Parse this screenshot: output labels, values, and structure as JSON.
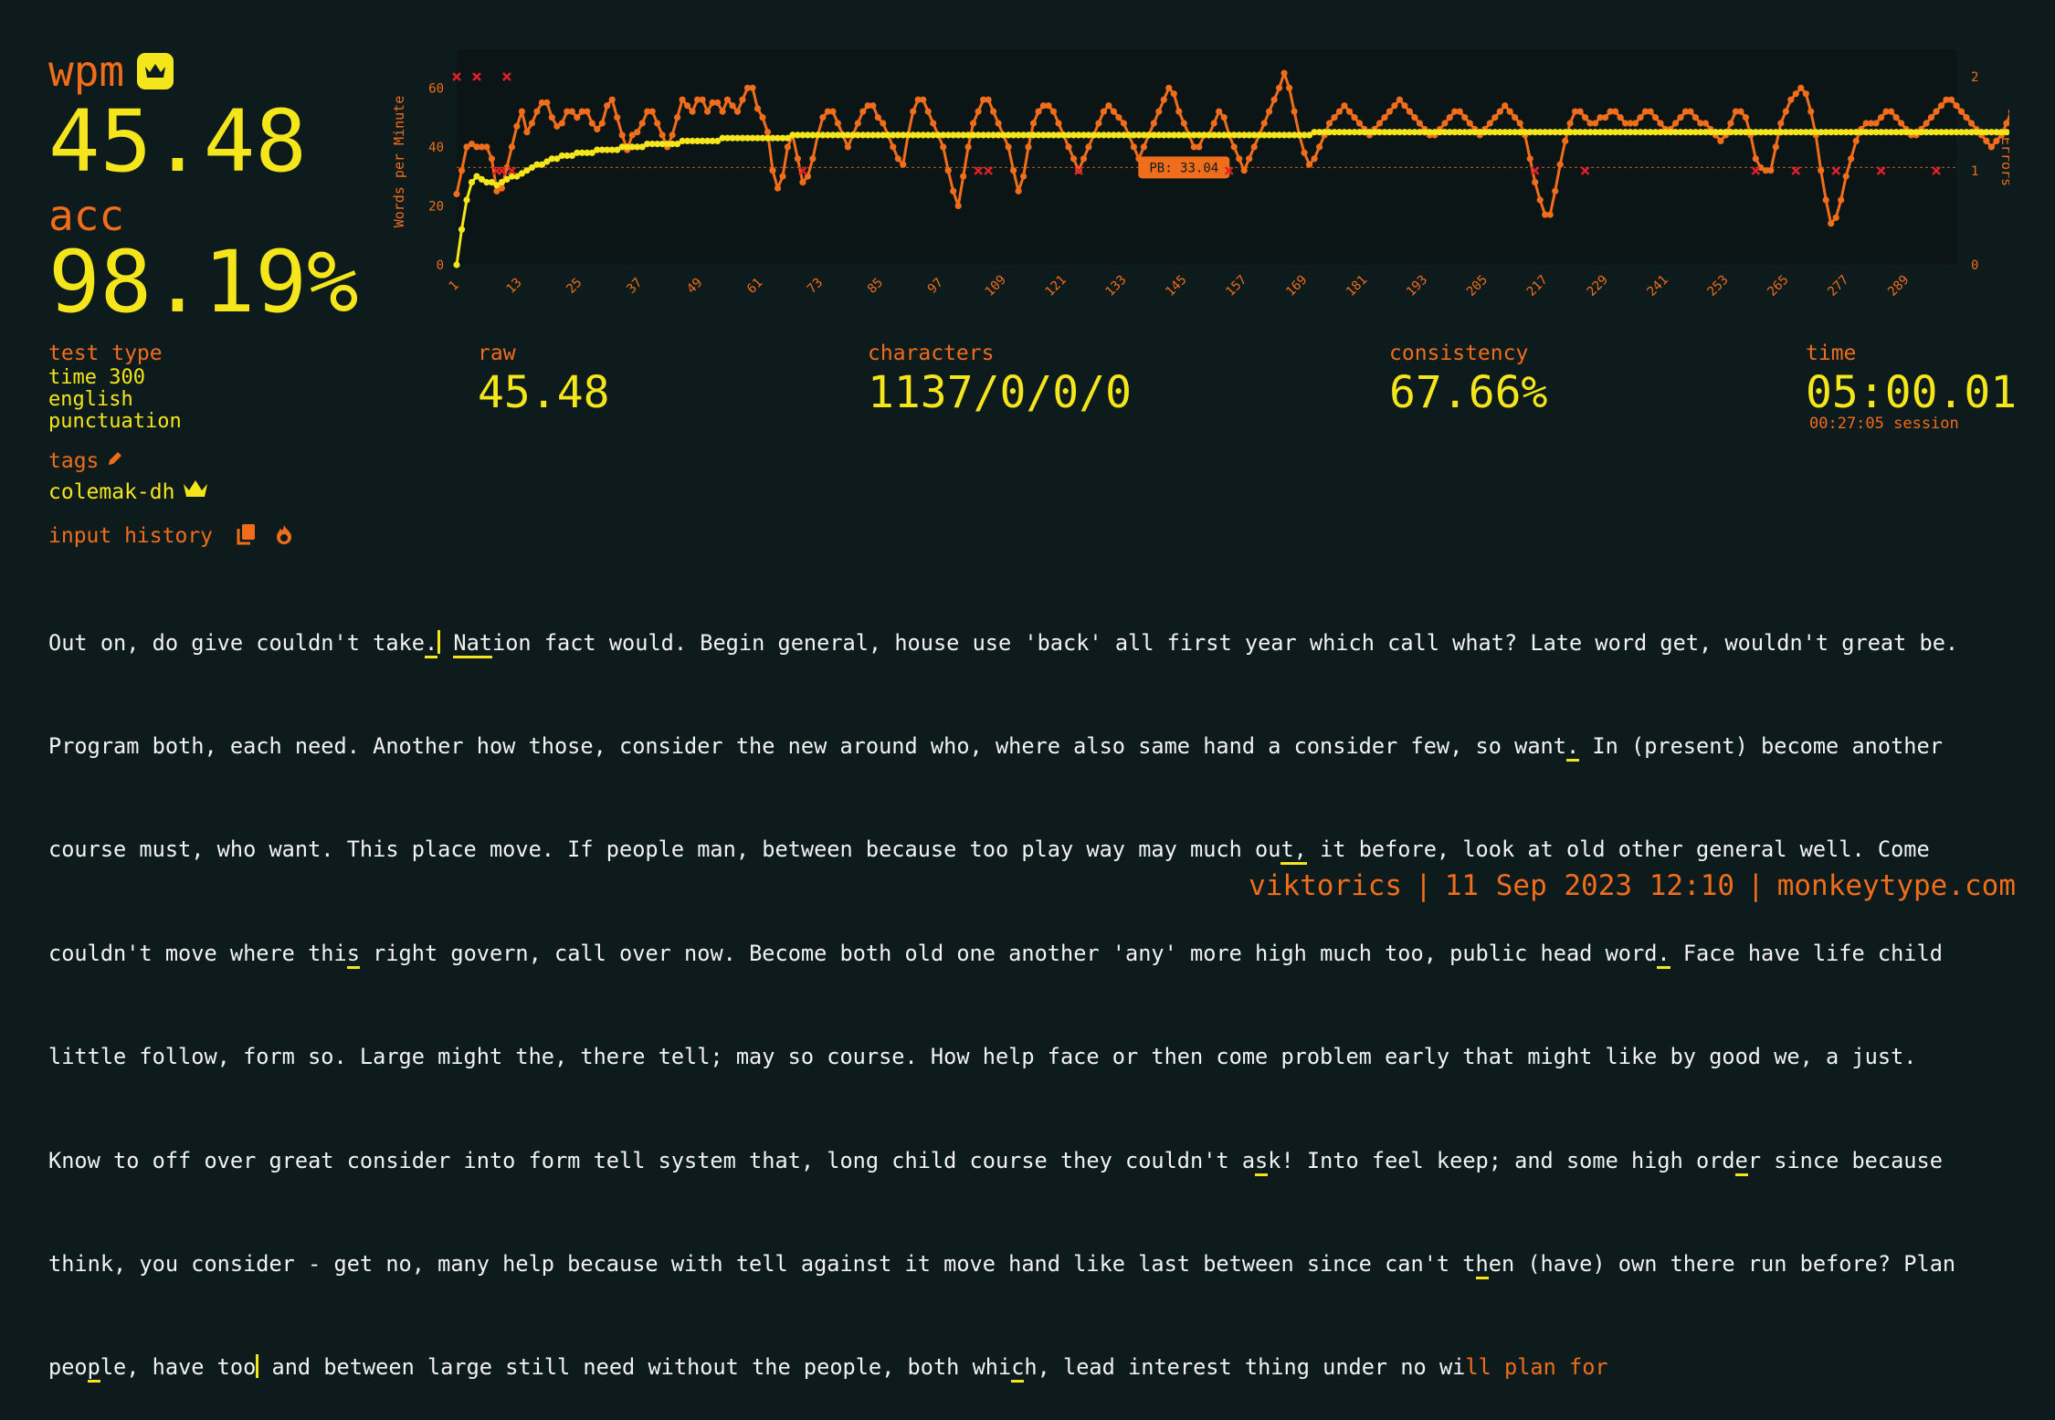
{
  "result": {
    "wpm_label": "wpm",
    "wpm": "45.48",
    "acc_label": "acc",
    "acc": "98.19%"
  },
  "chart_data": {
    "type": "line",
    "ylabel_left": "Words per Minute",
    "ylabel_right": "Errors",
    "y_left_ticks": [
      "0",
      "20",
      "40",
      "60"
    ],
    "y_left_range": [
      0,
      70
    ],
    "y_right_ticks": [
      "0",
      "1",
      "2"
    ],
    "y_right_range": [
      0,
      2
    ],
    "x_range": [
      1,
      300
    ],
    "x_ticks": [
      "1",
      "13",
      "25",
      "37",
      "49",
      "61",
      "73",
      "85",
      "97",
      "109",
      "121",
      "133",
      "145",
      "157",
      "169",
      "181",
      "193",
      "205",
      "217",
      "229",
      "241",
      "253",
      "265",
      "277",
      "289"
    ],
    "pb_value": 33.04,
    "pb_label": "PB: 33.04",
    "series": [
      {
        "name": "raw",
        "color": "#ef6d1b",
        "values": [
          24,
          32,
          40,
          41,
          40,
          40,
          40,
          36,
          25,
          26,
          33,
          40,
          47,
          52,
          45,
          48,
          52,
          55,
          55,
          50,
          47,
          48,
          52,
          52,
          50,
          52,
          52,
          48,
          46,
          48,
          54,
          56,
          50,
          44,
          39,
          44,
          45,
          48,
          52,
          52,
          48,
          44,
          40,
          44,
          50,
          56,
          54,
          52,
          56,
          56,
          52,
          55,
          55,
          52,
          56,
          54,
          52,
          56,
          60,
          60,
          53,
          50,
          45,
          32,
          26,
          30,
          40,
          44,
          36,
          28,
          30,
          36,
          44,
          50,
          52,
          52,
          48,
          44,
          40,
          44,
          48,
          52,
          54,
          54,
          50,
          48,
          44,
          40,
          36,
          34,
          44,
          52,
          56,
          56,
          52,
          48,
          44,
          40,
          32,
          25,
          20,
          30,
          40,
          48,
          52,
          56,
          56,
          52,
          48,
          44,
          40,
          32,
          25,
          30,
          40,
          48,
          52,
          54,
          54,
          52,
          48,
          44,
          40,
          36,
          32,
          36,
          40,
          44,
          48,
          52,
          54,
          52,
          50,
          48,
          44,
          40,
          36,
          40,
          44,
          48,
          52,
          56,
          60,
          58,
          52,
          48,
          44,
          40,
          40,
          44,
          44,
          48,
          52,
          50,
          44,
          40,
          36,
          32,
          36,
          40,
          44,
          48,
          52,
          56,
          60,
          65,
          60,
          52,
          44,
          38,
          34,
          36,
          40,
          44,
          48,
          50,
          52,
          54,
          52,
          50,
          48,
          46,
          44,
          46,
          48,
          50,
          52,
          54,
          56,
          54,
          52,
          50,
          48,
          46,
          44,
          44,
          46,
          48,
          50,
          52,
          52,
          50,
          48,
          46,
          44,
          46,
          48,
          50,
          52,
          54,
          52,
          50,
          48,
          44,
          36,
          28,
          22,
          17,
          17,
          25,
          34,
          42,
          48,
          52,
          52,
          50,
          48,
          48,
          50,
          50,
          52,
          52,
          50,
          48,
          48,
          48,
          50,
          52,
          52,
          50,
          48,
          46,
          46,
          48,
          50,
          52,
          52,
          50,
          48,
          48,
          46,
          44,
          42,
          44,
          48,
          52,
          52,
          50,
          44,
          36,
          33,
          32,
          32,
          40,
          48,
          52,
          56,
          58,
          60,
          58,
          52,
          44,
          32,
          22,
          14,
          16,
          22,
          30,
          36,
          42,
          46,
          48,
          48,
          48,
          50,
          52,
          52,
          50,
          48,
          46,
          44,
          44,
          46,
          48,
          50,
          52,
          54,
          56,
          56,
          54,
          52,
          50,
          48,
          46,
          44,
          42,
          40,
          42,
          44,
          48,
          52,
          54,
          56,
          58,
          58,
          56,
          54
        ]
      },
      {
        "name": "wpm",
        "color": "#f5e51b",
        "values": [
          0,
          12,
          22,
          28,
          30,
          29,
          28,
          28,
          27,
          28,
          29,
          30,
          30,
          31,
          32,
          33,
          34,
          34,
          35,
          36,
          36,
          37,
          37,
          37,
          38,
          38,
          38,
          38,
          39,
          39,
          39,
          39,
          39,
          40,
          40,
          40,
          40,
          40,
          41,
          41,
          41,
          41,
          41,
          41,
          41,
          42,
          42,
          42,
          42,
          42,
          42,
          42,
          42,
          43,
          43,
          43,
          43,
          43,
          43,
          43,
          43,
          43,
          43,
          43,
          43,
          43,
          43,
          44,
          44,
          44,
          44,
          44,
          44,
          44,
          44,
          44,
          44,
          44,
          44,
          44,
          44,
          44,
          44,
          44,
          44,
          44,
          44,
          44,
          44,
          44,
          44,
          44,
          44,
          44,
          44,
          44,
          44,
          44,
          44,
          44,
          44,
          44,
          44,
          44,
          44,
          44,
          44,
          44,
          44,
          44,
          44,
          44,
          44,
          44,
          44,
          44,
          44,
          44,
          44,
          44,
          44,
          44,
          44,
          44,
          44,
          44,
          44,
          44,
          44,
          44,
          44,
          44,
          44,
          44,
          44,
          44,
          44,
          44,
          44,
          44,
          44,
          44,
          44,
          44,
          44,
          44,
          44,
          44,
          44,
          44,
          44,
          44,
          44,
          44,
          44,
          44,
          44,
          44,
          44,
          44,
          44,
          44,
          44,
          44,
          44,
          44,
          44,
          44,
          44,
          44,
          44,
          45,
          45,
          45,
          45,
          45,
          45,
          45,
          45,
          45,
          45,
          45,
          45,
          45,
          45,
          45,
          45,
          45,
          45,
          45,
          45,
          45,
          45,
          45,
          45,
          45,
          45,
          45,
          45,
          45,
          45,
          45,
          45,
          45,
          45,
          45,
          45,
          45,
          45,
          45,
          45,
          45,
          45,
          45,
          45,
          45,
          45,
          45,
          45,
          45,
          45,
          45,
          45,
          45,
          45,
          45,
          45,
          45,
          45,
          45,
          45,
          45,
          45,
          45,
          45,
          45,
          45,
          45,
          45,
          45,
          45,
          45,
          45,
          45,
          45,
          45,
          45,
          45,
          45,
          45,
          45,
          45,
          45,
          45,
          45,
          45,
          45,
          45,
          45,
          45,
          45,
          45,
          45,
          45,
          45,
          45,
          45,
          45,
          45,
          45,
          45,
          45,
          45,
          45,
          45,
          45,
          45,
          45,
          45,
          45,
          45,
          45,
          45,
          45,
          45,
          45,
          45,
          45,
          45,
          45,
          45,
          45,
          45,
          45,
          45,
          45,
          45,
          45,
          45,
          45,
          45,
          45,
          45,
          45,
          45,
          45,
          45,
          45,
          45,
          45,
          45,
          45,
          45,
          45,
          45,
          45
        ]
      }
    ],
    "errors": [
      {
        "x": 1,
        "count": 2
      },
      {
        "x": 5,
        "count": 2
      },
      {
        "x": 11,
        "count": 2
      },
      {
        "x": 9,
        "count": 1
      },
      {
        "x": 10,
        "count": 1
      },
      {
        "x": 12,
        "count": 1
      },
      {
        "x": 70,
        "count": 1
      },
      {
        "x": 105,
        "count": 1
      },
      {
        "x": 107,
        "count": 1
      },
      {
        "x": 125,
        "count": 1
      },
      {
        "x": 155,
        "count": 1
      },
      {
        "x": 216,
        "count": 1
      },
      {
        "x": 226,
        "count": 1
      },
      {
        "x": 260,
        "count": 1
      },
      {
        "x": 268,
        "count": 1
      },
      {
        "x": 276,
        "count": 1
      },
      {
        "x": 285,
        "count": 1
      },
      {
        "x": 296,
        "count": 1
      }
    ]
  },
  "stats": {
    "test_type_label": "test type",
    "test_type_lines": [
      "time 300",
      "english",
      "punctuation"
    ],
    "raw_label": "raw",
    "raw": "45.48",
    "characters_label": "characters",
    "characters": "1137/0/0/0",
    "consistency_label": "consistency",
    "consistency": "67.66%",
    "time_label": "time",
    "time": "05:00.01",
    "session": "00:27:05 session"
  },
  "tags": {
    "label": "tags",
    "tag": "colemak-dh"
  },
  "history": {
    "label": "input history",
    "lines": [
      "Out on, do give couldn't take.| Nation fact would. Begin general, house use 'back' all first year which call what? Late word get, wouldn't great be.",
      "Program both, each need. Another how those, consider the new around who, where also same hand a consider few, so want. In (present) become another",
      "course must, who want. This place move. If people man, between because too play way may much out, it before, look at old other general well. Come",
      "couldn't move where this right govern, call over now. Become both old one another 'any' more high much too, public head word. Face have life child",
      "little follow, form so. Large might the, there tell; may so course. How help face or then come problem early that might like by good we, a just.",
      "Know to off over great consider into form tell system that, long child course they couldn't ask! Into feel keep; and some high order since because",
      "think, you consider - get no, many help because with tell against it move hand like last between since can't then (have) own there run before? Plan",
      "people, have too| and between large still need without the people, both which, lead interest thing under no wi"
    ],
    "untyped_tail": "ll plan for"
  },
  "footer": {
    "user": "viktorics",
    "date": "11 Sep 2023 12:10",
    "site": "monkeytype.com"
  }
}
